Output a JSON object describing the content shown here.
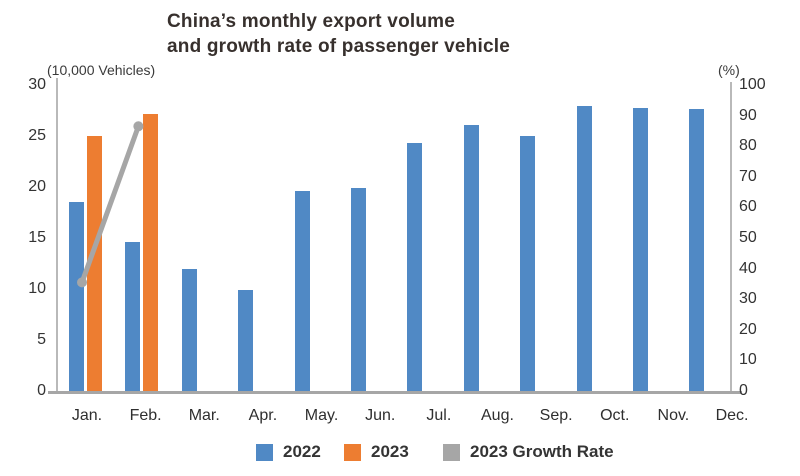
{
  "title": {
    "line1": "China’s monthly export volume",
    "line2": "and growth rate of passenger vehicle"
  },
  "axes": {
    "left": {
      "unit": "(10,000 Vehicles)",
      "ticks": [
        0,
        5,
        10,
        15,
        20,
        25,
        30
      ]
    },
    "right": {
      "unit": "(%)",
      "ticks": [
        0,
        10,
        20,
        30,
        40,
        50,
        60,
        70,
        80,
        90,
        100
      ]
    }
  },
  "legend": [
    {
      "label": "2022",
      "color": "#5089c5",
      "marker": "square"
    },
    {
      "label": "2023",
      "color": "#ed7d31",
      "marker": "square"
    },
    {
      "label": "2023 Growth Rate",
      "color": "#a6a6a6",
      "marker": "square"
    }
  ],
  "colors": {
    "bar_2022": "#5089c5",
    "bar_2023": "#ed7d31",
    "growth_line": "#a6a6a6",
    "title_text": "#37302d",
    "axis_text": "#333333",
    "axis_line": "#b9b9b9",
    "baseline": "#a6a6a6"
  },
  "chart_data": {
    "type": "bar",
    "subtype": "grouped-bars-with-secondary-axis-line",
    "title": "China’s monthly export volume and growth rate of passenger vehicle",
    "categories": [
      "Jan.",
      "Feb.",
      "Mar.",
      "Apr.",
      "May.",
      "Jun.",
      "Jul.",
      "Aug.",
      "Sep.",
      "Oct.",
      "Nov.",
      "Dec."
    ],
    "xlabel": "",
    "ylabel_left": "(10,000 Vehicles)",
    "ylabel_right": "(%)",
    "left_ylim": [
      0,
      30
    ],
    "right_ylim": [
      0,
      100
    ],
    "grid": false,
    "legend_position": "bottom",
    "series": [
      {
        "name": "2022",
        "type": "bar",
        "axis": "left",
        "color": "#5089c5",
        "values": [
          18.5,
          14.6,
          12.0,
          9.9,
          19.6,
          19.9,
          24.3,
          26.1,
          25.0,
          27.9,
          27.7,
          27.6
        ]
      },
      {
        "name": "2023",
        "type": "bar",
        "axis": "left",
        "color": "#ed7d31",
        "values": [
          25.0,
          27.2,
          null,
          null,
          null,
          null,
          null,
          null,
          null,
          null,
          null,
          null
        ]
      },
      {
        "name": "2023 Growth Rate",
        "type": "line",
        "axis": "right",
        "color": "#a6a6a6",
        "values": [
          35.5,
          86.5,
          null,
          null,
          null,
          null,
          null,
          null,
          null,
          null,
          null,
          null
        ]
      }
    ]
  }
}
